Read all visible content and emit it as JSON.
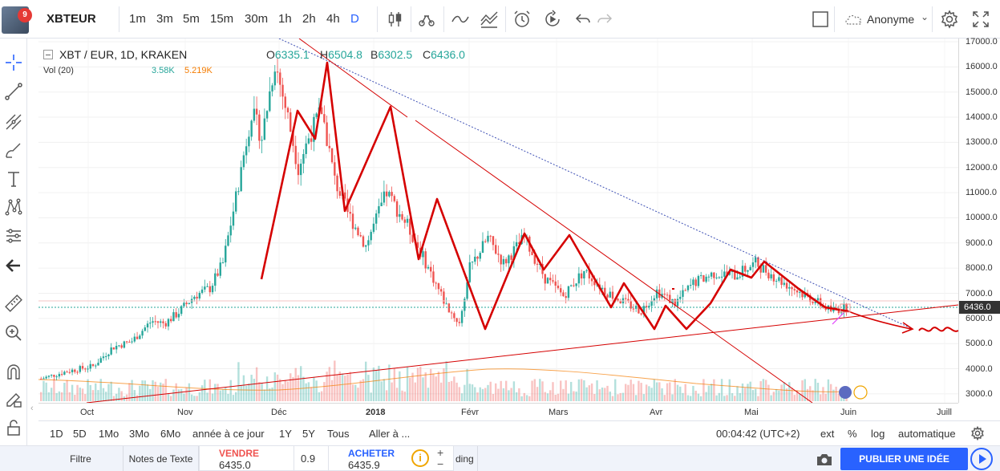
{
  "header": {
    "notification_count": "9",
    "symbol": "XBTEUR",
    "timeframes": [
      "1m",
      "3m",
      "5m",
      "15m",
      "30m",
      "1h",
      "2h",
      "4h",
      "D"
    ],
    "active_timeframe": "D",
    "user_label": "Anonyme"
  },
  "legend": {
    "title": "XBT / EUR, 1D, KRAKEN",
    "open_label": "O",
    "open": "6335.1",
    "high_label": "H",
    "high": "6504.8",
    "low_label": "B",
    "low": "6302.5",
    "close_label": "C",
    "close": "6436.0",
    "volume_title": "Vol (20)",
    "volume_value": "3.58K",
    "volume_ma": "5.219K"
  },
  "price_axis": {
    "ticks": [
      "17000.0",
      "16000.0",
      "15000.0",
      "14000.0",
      "13000.0",
      "12000.0",
      "11000.0",
      "10000.0",
      "9000.0",
      "8000.0",
      "7000.0",
      "6000.0",
      "5000.0",
      "4000.0",
      "3000.0"
    ],
    "current_price": "6436.0"
  },
  "time_axis": {
    "labels": [
      "Oct",
      "Nov",
      "Déc",
      "2018",
      "Févr",
      "Mars",
      "Avr",
      "Mai",
      "Juin",
      "Juill"
    ]
  },
  "range_bar": {
    "ranges": [
      "1D",
      "5D",
      "1Mo",
      "3Mo",
      "6Mo",
      "année à ce jour",
      "1Y",
      "5Y",
      "Tous"
    ],
    "goto": "Aller à ...",
    "clock": "00:04:42 (UTC+2)",
    "options": [
      "ext",
      "%",
      "log",
      "automatique"
    ]
  },
  "bottom_bar": {
    "tabs": [
      "Filtre",
      "Notes de Texte"
    ],
    "extra_tab": "ding",
    "sell_label": "VENDRE",
    "sell_price": "6435.0",
    "quantity": "0.9",
    "buy_label": "ACHETER",
    "buy_price": "6435.9",
    "plus": "+",
    "minus": "−",
    "info": "i",
    "publish_label": "PUBLIER UNE IDÉE"
  },
  "colors": {
    "up": "#26a69a",
    "down": "#ef5350",
    "drawing": "#d50000",
    "trend_blue": "#3f51b5",
    "accent": "#2962ff"
  }
}
